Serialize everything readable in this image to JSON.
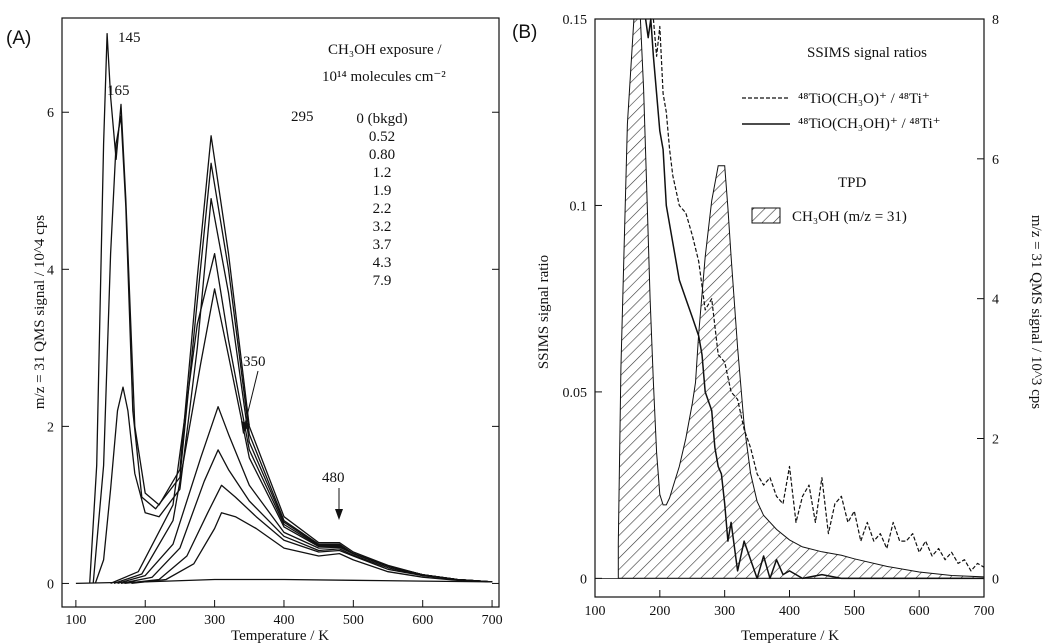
{
  "chart_data": [
    {
      "panel_label": "(A)",
      "type": "line",
      "xlabel": "Temperature / K",
      "ylabel": "m/z = 31 QMS signal / 10^4 cps",
      "xlim": [
        80,
        710
      ],
      "ylim": [
        -0.3,
        7.2
      ],
      "xticks": [
        "100",
        "200",
        "300",
        "400",
        "500",
        "600",
        "700"
      ],
      "yticks": [
        "0",
        "2",
        "4",
        "6"
      ],
      "legend_title_1": "CH₃OH exposure /",
      "legend_title_2": "10¹⁴ molecules  cm⁻²",
      "exposures": [
        "0 (bkgd)",
        "0.52",
        "0.80",
        "1.2",
        "1.9",
        "2.2",
        "3.2",
        "3.7",
        "4.3",
        "7.9"
      ],
      "annotations": {
        "p145": "145",
        "p165": "165",
        "p295": "295",
        "p350": "350",
        "p480": "480"
      },
      "series": [
        {
          "x": [
            100,
            200,
            300,
            400,
            500,
            600,
            700
          ],
          "values": [
            0,
            0.02,
            0.05,
            0.05,
            0.04,
            0.03,
            0.02
          ]
        },
        {
          "x": [
            180,
            230,
            270,
            300,
            310,
            330,
            360,
            400,
            450,
            480,
            500,
            550,
            600,
            650,
            700
          ],
          "values": [
            0,
            0.05,
            0.25,
            0.7,
            0.9,
            0.85,
            0.7,
            0.45,
            0.35,
            0.38,
            0.3,
            0.15,
            0.08,
            0.04,
            0.02
          ]
        },
        {
          "x": [
            170,
            220,
            260,
            290,
            310,
            330,
            360,
            400,
            450,
            480,
            500,
            550,
            600,
            650,
            700
          ],
          "values": [
            0,
            0.05,
            0.35,
            0.9,
            1.25,
            1.1,
            0.85,
            0.55,
            0.4,
            0.42,
            0.35,
            0.18,
            0.1,
            0.05,
            0.02
          ]
        },
        {
          "x": [
            165,
            210,
            250,
            285,
            305,
            320,
            350,
            400,
            450,
            480,
            500,
            550,
            600,
            650,
            700
          ],
          "values": [
            0,
            0.08,
            0.45,
            1.3,
            1.7,
            1.45,
            1.05,
            0.6,
            0.42,
            0.44,
            0.36,
            0.2,
            0.1,
            0.05,
            0.02
          ]
        },
        {
          "x": [
            160,
            200,
            240,
            280,
            305,
            320,
            350,
            400,
            450,
            480,
            500,
            550,
            600,
            650,
            700
          ],
          "values": [
            0,
            0.1,
            0.5,
            1.6,
            2.25,
            1.9,
            1.25,
            0.65,
            0.45,
            0.46,
            0.38,
            0.22,
            0.11,
            0.05,
            0.02
          ]
        },
        {
          "x": [
            155,
            195,
            240,
            280,
            300,
            320,
            350,
            400,
            450,
            480,
            500,
            550,
            600,
            650,
            700
          ],
          "values": [
            0,
            0.12,
            0.8,
            2.8,
            3.75,
            2.9,
            1.6,
            0.72,
            0.47,
            0.47,
            0.38,
            0.22,
            0.11,
            0.05,
            0.02
          ]
        },
        {
          "x": [
            150,
            190,
            240,
            275,
            300,
            320,
            350,
            400,
            450,
            480,
            500,
            550,
            600,
            650,
            700
          ],
          "values": [
            0,
            0.15,
            1.0,
            3.3,
            4.2,
            3.1,
            1.7,
            0.75,
            0.48,
            0.48,
            0.38,
            0.22,
            0.11,
            0.05,
            0.02
          ]
        },
        {
          "x": [
            128,
            140,
            150,
            160,
            168,
            175,
            185,
            200,
            220,
            250,
            275,
            295,
            320,
            350,
            400,
            450,
            480,
            500,
            550,
            600,
            650,
            700
          ],
          "values": [
            0,
            0.3,
            1.2,
            2.2,
            2.5,
            2.2,
            1.4,
            0.9,
            0.85,
            1.2,
            3.0,
            4.9,
            3.7,
            1.8,
            0.78,
            0.49,
            0.49,
            0.38,
            0.22,
            0.11,
            0.05,
            0.02
          ]
        },
        {
          "x": [
            125,
            140,
            150,
            158,
            165,
            172,
            182,
            195,
            215,
            250,
            275,
            295,
            320,
            350,
            400,
            450,
            480,
            500,
            550,
            600,
            650,
            700
          ],
          "values": [
            0,
            1.5,
            4.2,
            5.6,
            5.95,
            4.8,
            2.2,
            1.1,
            0.95,
            1.35,
            3.6,
            5.35,
            4.0,
            1.9,
            0.8,
            0.5,
            0.5,
            0.38,
            0.22,
            0.11,
            0.05,
            0.02
          ]
        },
        {
          "x": [
            120,
            130,
            140,
            145,
            150,
            158,
            165,
            172,
            185,
            200,
            220,
            250,
            275,
            295,
            320,
            350,
            400,
            450,
            480,
            500,
            550,
            600,
            650,
            700
          ],
          "values": [
            0,
            1.5,
            5.6,
            7.0,
            6.2,
            5.4,
            6.1,
            4.9,
            2.0,
            1.15,
            1.0,
            1.45,
            3.9,
            5.7,
            4.2,
            2.0,
            0.85,
            0.52,
            0.52,
            0.4,
            0.23,
            0.11,
            0.05,
            0.02
          ]
        }
      ]
    },
    {
      "panel_label": "(B)",
      "type": "line",
      "xlabel": "Temperature / K",
      "ylabel": "SSIMS signal ratio",
      "ylabel_right": "m/z = 31 QMS signal / 10^3 cps",
      "xlim": [
        100,
        700
      ],
      "ylim": [
        -0.005,
        0.15
      ],
      "ylim_right": [
        -0.267,
        8
      ],
      "xticks": [
        "100",
        "200",
        "300",
        "400",
        "500",
        "600",
        "700"
      ],
      "yticks": [
        "0",
        "0.05",
        "0.1",
        "0.15"
      ],
      "yticks_right": [
        "0",
        "2",
        "4",
        "6",
        "8"
      ],
      "legend_title": "SSIMS signal ratios",
      "legend_dashed": "⁴⁸TiO(CH₃O)⁺ / ⁴⁸Ti⁺",
      "legend_solid": "⁴⁸TiO(CH₃OH)⁺ / ⁴⁸Ti⁺",
      "tpd_title": "TPD",
      "tpd_label": "CH₃OH (m/z = 31)",
      "series": [
        {
          "name": "⁴⁸TiO(CH₃O)⁺ / ⁴⁸Ti⁺",
          "style": "dashed",
          "x": [
            190,
            195,
            200,
            205,
            210,
            215,
            220,
            230,
            240,
            250,
            260,
            270,
            280,
            290,
            300,
            310,
            320,
            330,
            340,
            350,
            360,
            370,
            380,
            390,
            400,
            410,
            420,
            430,
            440,
            450,
            460,
            470,
            480,
            490,
            500,
            510,
            520,
            530,
            540,
            550,
            560,
            570,
            580,
            590,
            600,
            610,
            620,
            630,
            640,
            650,
            660,
            670,
            680,
            690,
            700
          ],
          "values": [
            0.15,
            0.14,
            0.148,
            0.13,
            0.125,
            0.115,
            0.108,
            0.1,
            0.098,
            0.092,
            0.085,
            0.072,
            0.075,
            0.06,
            0.058,
            0.05,
            0.048,
            0.04,
            0.035,
            0.028,
            0.025,
            0.027,
            0.022,
            0.02,
            0.03,
            0.015,
            0.022,
            0.025,
            0.015,
            0.027,
            0.012,
            0.02,
            0.022,
            0.015,
            0.018,
            0.01,
            0.015,
            0.01,
            0.012,
            0.008,
            0.015,
            0.01,
            0.01,
            0.012,
            0.007,
            0.01,
            0.006,
            0.008,
            0.005,
            0.007,
            0.004,
            0.005,
            0.002,
            0.004,
            0.003
          ]
        },
        {
          "name": "⁴⁸TiO(CH₃OH)⁺ / ⁴⁸Ti⁺",
          "style": "solid",
          "x": [
            178,
            182,
            186,
            190,
            195,
            200,
            205,
            210,
            220,
            230,
            240,
            250,
            260,
            265,
            270,
            280,
            285,
            290,
            295,
            300,
            305,
            310,
            320,
            330,
            340,
            350,
            360,
            370,
            380,
            390,
            400,
            420,
            450,
            480,
            500,
            550,
            600,
            650,
            700
          ],
          "values": [
            0.15,
            0.145,
            0.15,
            0.14,
            0.13,
            0.12,
            0.115,
            0.1,
            0.09,
            0.08,
            0.075,
            0.07,
            0.065,
            0.06,
            0.05,
            0.045,
            0.035,
            0.03,
            0.028,
            0.02,
            0.01,
            0.015,
            0.002,
            0.01,
            0.005,
            0.0,
            0.006,
            0.0,
            0.005,
            0.001,
            0.002,
            0.0,
            0.001,
            0.0,
            0.0,
            0.0,
            0.0,
            0.0,
            0.0
          ]
        },
        {
          "name": "CH₃OH (m/z = 31)",
          "style": "hatched",
          "axis": "right",
          "x": [
            136,
            140,
            150,
            160,
            170,
            175,
            180,
            185,
            190,
            195,
            200,
            205,
            210,
            215,
            220,
            230,
            240,
            250,
            255,
            260,
            270,
            280,
            290,
            300,
            305,
            310,
            320,
            330,
            340,
            350,
            360,
            380,
            400,
            420,
            450,
            480,
            500,
            550,
            600,
            650,
            700
          ],
          "values": [
            0.5,
            3.0,
            6.5,
            8.0,
            8.0,
            7.0,
            5.5,
            4.0,
            2.8,
            1.8,
            1.2,
            1.05,
            1.05,
            1.15,
            1.3,
            1.6,
            2.0,
            2.5,
            2.8,
            3.5,
            4.6,
            5.4,
            5.9,
            5.9,
            5.3,
            4.6,
            3.3,
            2.2,
            1.5,
            1.1,
            0.9,
            0.7,
            0.55,
            0.45,
            0.38,
            0.33,
            0.28,
            0.17,
            0.09,
            0.04,
            0.02
          ]
        }
      ]
    }
  ]
}
